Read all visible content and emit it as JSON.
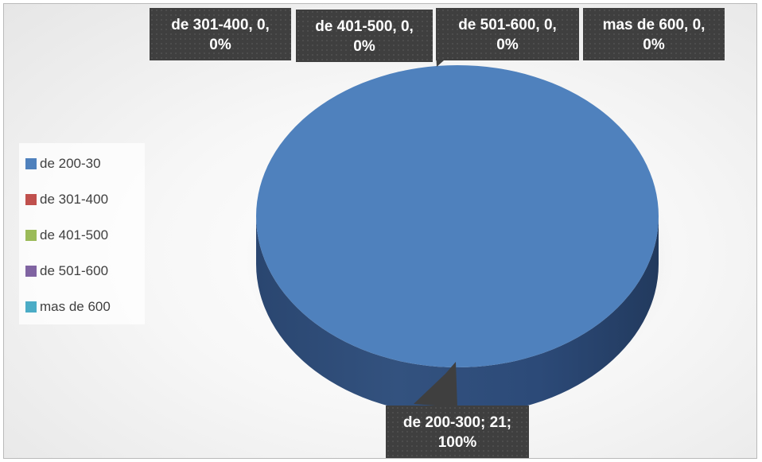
{
  "chart_data": {
    "type": "pie",
    "categories": [
      "de 200-300",
      "de 301-400",
      "de 401-500",
      "de 501-600",
      "mas de 600"
    ],
    "values": [
      21,
      0,
      0,
      0,
      0
    ],
    "percentages": [
      "100%",
      "0%",
      "0%",
      "0%",
      "0%"
    ],
    "colors": [
      "#4f81bd",
      "#c0504d",
      "#9bbb59",
      "#8064a2",
      "#4bacc6"
    ],
    "legend": {
      "position": "left",
      "entries": [
        "de 200-30",
        "de 301-400",
        "de 401-500",
        "de 501-600",
        "mas de 600"
      ]
    },
    "data_labels": [
      {
        "line1": "de 200-300; 21;",
        "line2": "100%"
      },
      {
        "line1": "de 301-400, 0,",
        "line2": "0%"
      },
      {
        "line1": "de 401-500, 0,",
        "line2": "0%"
      },
      {
        "line1": "de 501-600, 0,",
        "line2": "0%"
      },
      {
        "line1": "mas de 600, 0,",
        "line2": "0%"
      }
    ],
    "style": "3d"
  }
}
